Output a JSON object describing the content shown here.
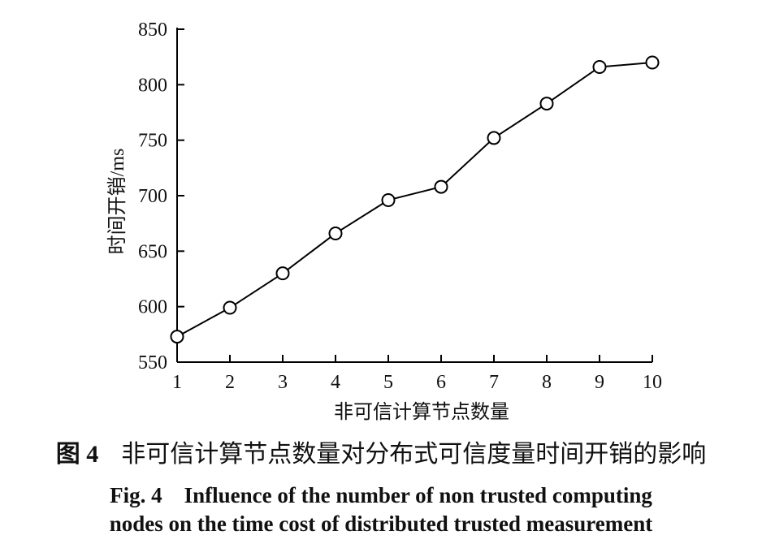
{
  "chart_data": {
    "type": "line",
    "x": [
      1,
      2,
      3,
      4,
      5,
      6,
      7,
      8,
      9,
      10
    ],
    "series": [
      {
        "values": [
          573,
          599,
          630,
          666,
          696,
          708,
          752,
          783,
          816,
          820
        ],
        "marker": "open-circle",
        "color": "#000000"
      }
    ],
    "xlabel": "非可信计算节点数量",
    "ylabel": "时间开销/ms",
    "xlim": [
      1,
      10
    ],
    "ylim": [
      550,
      850
    ],
    "xticks": [
      "1",
      "2",
      "3",
      "4",
      "5",
      "6",
      "7",
      "8",
      "9",
      "10"
    ],
    "yticks": [
      "550",
      "600",
      "650",
      "700",
      "750",
      "800",
      "850"
    ],
    "grid": false
  },
  "caption": {
    "cn_fig_label": "图 4",
    "cn_text": "非可信计算节点数量对分布式可信度量时间开销的影响",
    "en_line1": "Fig. 4　Influence of the number of non trusted computing",
    "en_line2": "nodes on the time cost of distributed trusted measurement"
  }
}
